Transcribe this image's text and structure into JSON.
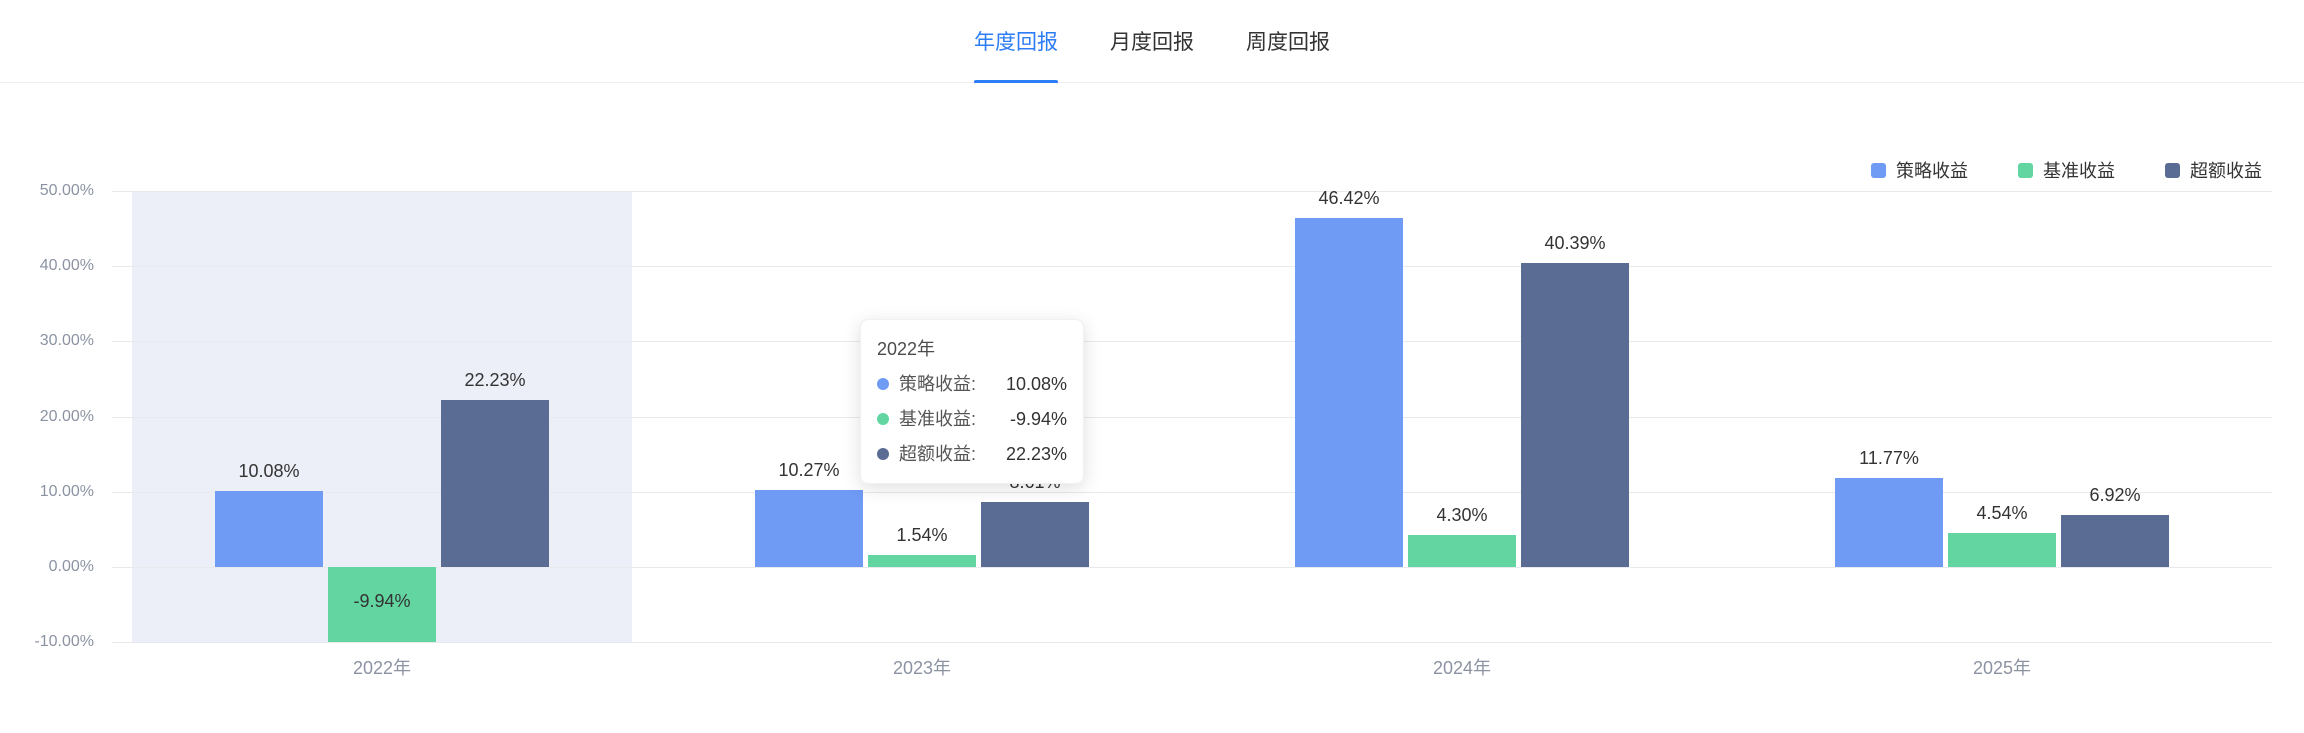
{
  "tabs": {
    "items": [
      {
        "label": "年度回报",
        "active": true
      },
      {
        "label": "月度回报",
        "active": false
      },
      {
        "label": "周度回报",
        "active": false
      }
    ]
  },
  "legend": {
    "items": [
      {
        "label": "策略收益",
        "color": "#6F9BF5"
      },
      {
        "label": "基准收益",
        "color": "#62D5A1"
      },
      {
        "label": "超额收益",
        "color": "#5A6C94"
      }
    ]
  },
  "chart_data": {
    "type": "bar",
    "title": "",
    "categories": [
      "2022年",
      "2023年",
      "2024年",
      "2025年"
    ],
    "series": [
      {
        "name": "策略收益",
        "color": "#6F9BF5",
        "values": [
          10.08,
          10.27,
          46.42,
          11.77
        ]
      },
      {
        "name": "基准收益",
        "color": "#62D5A1",
        "values": [
          -9.94,
          1.54,
          4.3,
          4.54
        ]
      },
      {
        "name": "超额收益",
        "color": "#5A6C94",
        "values": [
          22.23,
          8.61,
          40.39,
          6.92
        ]
      }
    ],
    "ylim": [
      -10,
      50
    ],
    "ytick_step": 10,
    "ytick_labels": [
      "50.00%",
      "40.00%",
      "30.00%",
      "20.00%",
      "10.00%",
      "0.00%",
      "-10.00%"
    ],
    "value_label_format": "0.00%",
    "grid": true,
    "legend_position": "top-right",
    "highlighted_category": "2022年"
  },
  "tooltip": {
    "title": "2022年",
    "rows": [
      {
        "name": "策略收益:",
        "value": "10.08%",
        "color": "#6F9BF5"
      },
      {
        "name": "基准收益:",
        "value": "-9.94%",
        "color": "#62D5A1"
      },
      {
        "name": "超额收益:",
        "value": "22.23%",
        "color": "#5A6C94"
      }
    ]
  },
  "colors": {
    "accent": "#2C7DF6",
    "grid": "#E8EAEE",
    "axis_label": "#8B93A2",
    "value_label": "#333333",
    "highlight_band": "#ECEEF8"
  }
}
